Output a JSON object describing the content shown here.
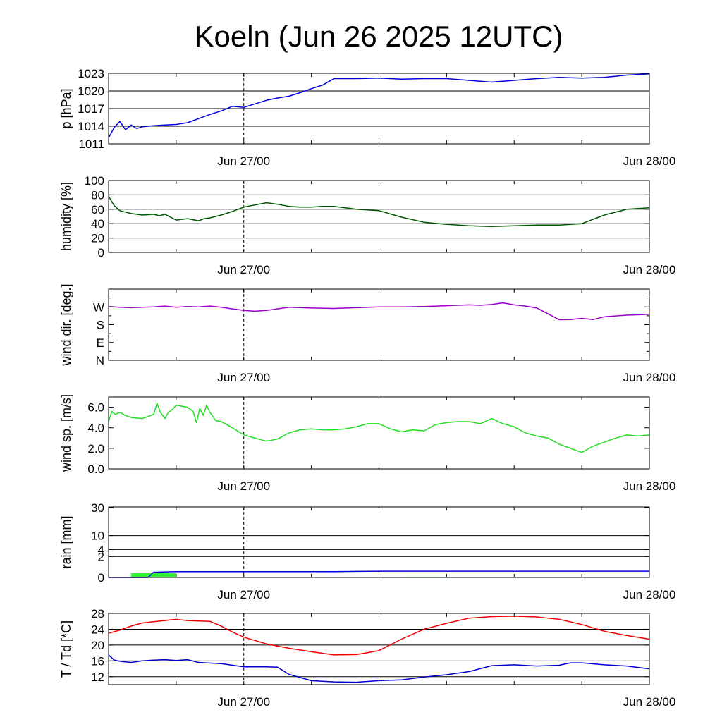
{
  "title": "Koeln (Jun 26 2025 12UTC)",
  "x_ticks": [
    "Jun 27/00",
    "Jun 28/00"
  ],
  "chart_data": [
    {
      "id": "pressure",
      "type": "line",
      "ylabel": "p [hPa]",
      "ylim": [
        1011,
        1023
      ],
      "yticks": [
        {
          "v": 1011,
          "label": "1011"
        },
        {
          "v": 1014,
          "label": "1014"
        },
        {
          "v": 1017,
          "label": "1017"
        },
        {
          "v": 1020,
          "label": "1020"
        },
        {
          "v": 1023,
          "label": "1023"
        }
      ],
      "grid": [
        1014,
        1017,
        1020,
        1023
      ],
      "series": [
        {
          "color": "#0000dd",
          "x": [
            0,
            0.5,
            1,
            1.5,
            2,
            2.5,
            3,
            4,
            5,
            6,
            7,
            8,
            9,
            10,
            11,
            12,
            13,
            14,
            15,
            16,
            17,
            18,
            19,
            20,
            22,
            24,
            26,
            28,
            30,
            32,
            34,
            36,
            38,
            40,
            42,
            44,
            46,
            48
          ],
          "y": [
            1012,
            1013.8,
            1014.8,
            1013.4,
            1014.2,
            1013.6,
            1013.9,
            1014.1,
            1014.2,
            1014.3,
            1014.6,
            1015.3,
            1016,
            1016.6,
            1017.4,
            1017.2,
            1017.8,
            1018.4,
            1018.8,
            1019.1,
            1019.7,
            1020.4,
            1021,
            1022.1,
            1022.1,
            1022.2,
            1022,
            1022.1,
            1022.1,
            1021.8,
            1021.5,
            1021.8,
            1022.1,
            1022.3,
            1022.2,
            1022.3,
            1022.7,
            1022.9
          ]
        }
      ]
    },
    {
      "id": "humidity",
      "type": "line",
      "ylabel": "humidity [%]",
      "ylim": [
        0,
        100
      ],
      "yticks": [
        {
          "v": 0,
          "label": "0"
        },
        {
          "v": 20,
          "label": "20"
        },
        {
          "v": 40,
          "label": "40"
        },
        {
          "v": 60,
          "label": "60"
        },
        {
          "v": 80,
          "label": "80"
        },
        {
          "v": 100,
          "label": "100"
        }
      ],
      "grid": [
        20,
        40,
        60,
        80
      ],
      "series": [
        {
          "color": "#005500",
          "x": [
            0,
            0.5,
            1,
            2,
            3,
            4,
            4.5,
            5,
            5.5,
            6,
            7,
            8,
            8.5,
            9,
            10,
            11,
            12,
            13,
            14,
            15,
            16,
            17,
            18,
            19,
            20,
            21,
            22,
            23,
            24,
            26,
            28,
            30,
            32,
            34,
            36,
            38,
            40,
            42,
            44,
            46,
            48
          ],
          "y": [
            78,
            65,
            58,
            54,
            52,
            53,
            51,
            53,
            49,
            45,
            47,
            44,
            47,
            48,
            52,
            57,
            63,
            66,
            69,
            67,
            64,
            63,
            63,
            64,
            64,
            62,
            60,
            59,
            58,
            49,
            42,
            39,
            37,
            36,
            37,
            38,
            38,
            40,
            52,
            60,
            62
          ]
        }
      ]
    },
    {
      "id": "wind_dir",
      "type": "line",
      "ylabel": "wind dir. [deg.]",
      "ylim": [
        0,
        360
      ],
      "yticks": [
        {
          "v": 0,
          "label": "N"
        },
        {
          "v": 90,
          "label": "E"
        },
        {
          "v": 180,
          "label": "S"
        },
        {
          "v": 270,
          "label": "W"
        }
      ],
      "grid": [],
      "series": [
        {
          "color": "#9900cc",
          "x": [
            0,
            1,
            2,
            3,
            4,
            5,
            6,
            7,
            8,
            9,
            10,
            11,
            12,
            13,
            14,
            16,
            18,
            20,
            22,
            24,
            26,
            28,
            30,
            32,
            33,
            34,
            35,
            36,
            37,
            38,
            39,
            40,
            41,
            42,
            43,
            44,
            46,
            48
          ],
          "y": [
            272,
            268,
            266,
            268,
            270,
            274,
            268,
            272,
            270,
            274,
            268,
            260,
            252,
            248,
            252,
            268,
            264,
            262,
            266,
            270,
            270,
            272,
            276,
            280,
            278,
            282,
            290,
            280,
            274,
            265,
            235,
            205,
            206,
            212,
            206,
            220,
            228,
            232
          ]
        }
      ]
    },
    {
      "id": "wind_speed",
      "type": "line",
      "ylabel": "wind sp. [m/s]",
      "ylim": [
        0,
        7
      ],
      "yticks": [
        {
          "v": 0,
          "label": "0.0"
        },
        {
          "v": 2,
          "label": "2.0"
        },
        {
          "v": 4,
          "label": "4.0"
        },
        {
          "v": 6,
          "label": "6.0"
        }
      ],
      "grid": [],
      "series": [
        {
          "color": "#22dd22",
          "x": [
            0,
            0.3,
            0.6,
            1,
            1.5,
            2,
            3,
            4,
            4.3,
            4.6,
            5,
            5.3,
            5.6,
            6,
            6.5,
            7,
            7.5,
            7.8,
            8.1,
            8.4,
            8.7,
            9,
            9.5,
            10,
            11,
            12,
            13,
            14,
            15,
            16,
            17,
            18,
            19,
            20,
            21,
            22,
            23,
            24,
            25,
            26,
            27,
            28,
            29,
            30,
            31,
            32,
            33,
            34,
            35,
            36,
            37,
            38,
            39,
            40,
            41,
            42,
            43,
            44,
            45,
            46,
            47,
            48
          ],
          "y": [
            4.6,
            5.6,
            5.3,
            5.5,
            5.2,
            5.0,
            4.9,
            5.3,
            6.4,
            5.5,
            4.9,
            5.5,
            5.7,
            6.2,
            6.1,
            6.0,
            5.6,
            4.5,
            5.9,
            5.2,
            6.2,
            5.5,
            4.7,
            4.6,
            4.0,
            3.3,
            3.0,
            2.7,
            2.9,
            3.5,
            3.8,
            3.9,
            3.8,
            3.8,
            3.9,
            4.1,
            4.4,
            4.4,
            3.9,
            3.6,
            3.8,
            3.7,
            4.3,
            4.5,
            4.6,
            4.6,
            4.4,
            4.9,
            4.4,
            4.1,
            3.5,
            3.2,
            3.0,
            2.4,
            2.0,
            1.6,
            2.2,
            2.6,
            3.0,
            3.3,
            3.2,
            3.3
          ]
        }
      ]
    },
    {
      "id": "rain",
      "type": "bar",
      "ylabel": "rain [mm]",
      "ylim": [
        0,
        30
      ],
      "yticks": [
        {
          "v": 0,
          "label": "0"
        },
        {
          "v": 2,
          "label": "2"
        },
        {
          "v": 4,
          "label": "4"
        },
        {
          "v": 10,
          "label": "10"
        },
        {
          "v": 30,
          "label": "30"
        }
      ],
      "grid": [
        2,
        4,
        10
      ],
      "bars": [
        {
          "x0": 2,
          "x1": 6,
          "value": 0.4,
          "color": "#33ee33"
        },
        {
          "x0": 26,
          "x1": 30,
          "value": 0.05,
          "color": "#33ee33"
        }
      ],
      "series": [
        {
          "color": "#0000dd",
          "x": [
            0,
            3.5,
            4,
            6,
            12,
            20,
            24,
            48
          ],
          "y": [
            0,
            0,
            0.5,
            0.55,
            0.55,
            0.55,
            0.6,
            0.6
          ]
        }
      ]
    },
    {
      "id": "temperature",
      "type": "line",
      "ylabel": "T / Td [*C]",
      "ylim": [
        10,
        28
      ],
      "yticks": [
        {
          "v": 12,
          "label": "12"
        },
        {
          "v": 16,
          "label": "16"
        },
        {
          "v": 20,
          "label": "20"
        },
        {
          "v": 24,
          "label": "24"
        },
        {
          "v": 28,
          "label": "28"
        }
      ],
      "grid": [
        12,
        16,
        20,
        24
      ],
      "series": [
        {
          "color": "#ee0000",
          "x": [
            0,
            1,
            2,
            3,
            4,
            5,
            6,
            7,
            8,
            9,
            10,
            11,
            12,
            14,
            16,
            18,
            20,
            22,
            24,
            26,
            28,
            30,
            32,
            34,
            36,
            38,
            40,
            42,
            44,
            46,
            48
          ],
          "y": [
            23,
            23.8,
            24.8,
            25.6,
            25.9,
            26.2,
            26.5,
            26.2,
            26.1,
            26,
            24.8,
            23.3,
            22,
            20.3,
            19.2,
            18.3,
            17.5,
            17.6,
            18.6,
            21.5,
            24,
            25.5,
            26.8,
            27.2,
            27.3,
            27.1,
            26.5,
            25.2,
            23.5,
            22.4,
            21.5
          ]
        },
        {
          "color": "#0000cc",
          "x": [
            0,
            0.5,
            1,
            2,
            3,
            4,
            5,
            6,
            7,
            8,
            10,
            12,
            14,
            15,
            16,
            18,
            20,
            22,
            24,
            26,
            28,
            30,
            32,
            34,
            36,
            38,
            40,
            41,
            42,
            44,
            46,
            48
          ],
          "y": [
            17.5,
            16.2,
            15.9,
            15.6,
            16,
            16.2,
            16.3,
            16.1,
            16.3,
            15.6,
            15.3,
            14.5,
            14.5,
            14.4,
            12.6,
            11,
            10.7,
            10.6,
            11,
            11.2,
            11.9,
            12.5,
            13.3,
            14.8,
            15,
            14.7,
            14.9,
            15.5,
            15.5,
            15,
            14.7,
            14
          ]
        }
      ]
    }
  ]
}
